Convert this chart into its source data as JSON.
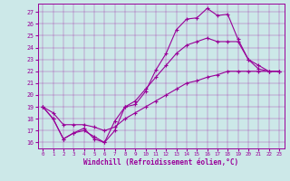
{
  "xlabel": "Windchill (Refroidissement éolien,°C)",
  "bg_color": "#cce8e8",
  "line_color": "#990099",
  "xlim": [
    -0.5,
    23.5
  ],
  "ylim": [
    15.5,
    27.7
  ],
  "xticks": [
    0,
    1,
    2,
    3,
    4,
    5,
    6,
    7,
    8,
    9,
    10,
    11,
    12,
    13,
    14,
    15,
    16,
    17,
    18,
    19,
    20,
    21,
    22,
    23
  ],
  "yticks": [
    16,
    17,
    18,
    19,
    20,
    21,
    22,
    23,
    24,
    25,
    26,
    27
  ],
  "line1_x": [
    0,
    1,
    2,
    3,
    4,
    5,
    6,
    7,
    8,
    9,
    10,
    11,
    12,
    13,
    14,
    15,
    16,
    17,
    18,
    19,
    20,
    21,
    22,
    23
  ],
  "line1_y": [
    19.0,
    18.0,
    16.3,
    16.8,
    17.2,
    16.3,
    16.0,
    17.0,
    19.0,
    19.2,
    20.3,
    22.1,
    23.5,
    25.5,
    26.4,
    26.5,
    27.3,
    26.7,
    26.8,
    24.7,
    23.0,
    22.2,
    22.0,
    22.0
  ],
  "line2_x": [
    0,
    1,
    2,
    3,
    4,
    5,
    6,
    7,
    8,
    9,
    10,
    11,
    12,
    13,
    14,
    15,
    16,
    17,
    18,
    19,
    20,
    21,
    22,
    23
  ],
  "line2_y": [
    19.0,
    18.0,
    16.3,
    16.8,
    17.0,
    16.5,
    16.0,
    17.8,
    19.0,
    19.5,
    20.5,
    21.5,
    22.5,
    23.5,
    24.2,
    24.5,
    24.8,
    24.5,
    24.5,
    24.5,
    23.0,
    22.5,
    22.0,
    22.0
  ],
  "line3_x": [
    0,
    1,
    2,
    3,
    4,
    5,
    6,
    7,
    8,
    9,
    10,
    11,
    12,
    13,
    14,
    15,
    16,
    17,
    18,
    19,
    20,
    21,
    22,
    23
  ],
  "line3_y": [
    19.0,
    18.5,
    17.5,
    17.5,
    17.5,
    17.3,
    17.0,
    17.3,
    18.0,
    18.5,
    19.0,
    19.5,
    20.0,
    20.5,
    21.0,
    21.2,
    21.5,
    21.7,
    22.0,
    22.0,
    22.0,
    22.0,
    22.0,
    22.0
  ]
}
